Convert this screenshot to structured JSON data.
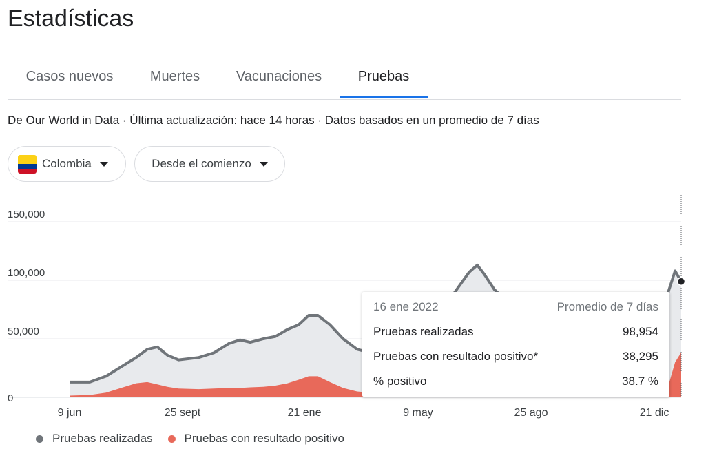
{
  "page_title": "Estadísticas",
  "tabs": [
    {
      "label": "Casos nuevos"
    },
    {
      "label": "Muertes"
    },
    {
      "label": "Vacunaciones"
    },
    {
      "label": "Pruebas"
    }
  ],
  "source": {
    "prefix": "De ",
    "link": "Our World in Data",
    "rest": " · Última actualización: hace 14 horas · Datos basados en un promedio de 7 días"
  },
  "filters": {
    "country": "Colombia",
    "range": "Desde el comienzo"
  },
  "colors": {
    "tests_line": "#70757a",
    "tests_fill": "#e8eaed",
    "positive_fill": "#e8695a",
    "grid": "#e8eaed",
    "tab_active": "#1a73e8"
  },
  "tooltip": {
    "date": "16 ene 2022",
    "note": "Promedio de 7 días",
    "rows": [
      {
        "label": "Pruebas realizadas",
        "value": "98,954"
      },
      {
        "label": "Pruebas con resultado positivo*",
        "value": "38,295"
      },
      {
        "label": "% positivo",
        "value": "38.7 %"
      }
    ]
  },
  "legend": [
    {
      "label": "Pruebas realizadas",
      "color": "#70757a"
    },
    {
      "label": "Pruebas con resultado positivo",
      "color": "#e8695a"
    }
  ],
  "chart_data": {
    "type": "area",
    "title": "",
    "xlabel": "",
    "ylabel": "",
    "ylim": [
      0,
      160000
    ],
    "yticks": [
      0,
      50000,
      100000,
      150000
    ],
    "ytick_labels": [
      "0",
      "50,000",
      "100,000",
      "150,000"
    ],
    "xtick_labels": [
      "9 jun",
      "25 sept",
      "21 ene",
      "9 may",
      "25 ago",
      "21 dic"
    ],
    "xlim": [
      "2020-05-20",
      "2022-01-16"
    ],
    "grid": true,
    "legend_position": "bottom-left",
    "x": [
      "2020-05-20",
      "2020-06-09",
      "2020-06-25",
      "2020-07-10",
      "2020-07-25",
      "2020-08-05",
      "2020-08-15",
      "2020-08-25",
      "2020-09-05",
      "2020-09-25",
      "2020-10-10",
      "2020-10-25",
      "2020-11-05",
      "2020-11-15",
      "2020-11-28",
      "2020-12-10",
      "2020-12-22",
      "2021-01-02",
      "2021-01-12",
      "2021-01-21",
      "2021-02-02",
      "2021-02-15",
      "2021-03-01",
      "2021-03-15",
      "2021-03-30",
      "2021-04-12",
      "2021-04-25",
      "2021-05-09",
      "2021-05-20",
      "2021-06-01",
      "2021-06-10",
      "2021-06-20",
      "2021-06-28",
      "2021-07-05",
      "2021-07-15",
      "2021-07-30",
      "2021-08-25",
      "2021-09-20",
      "2021-10-20",
      "2021-11-20",
      "2021-12-10",
      "2021-12-21",
      "2021-12-28",
      "2022-01-04",
      "2022-01-10",
      "2022-01-16"
    ],
    "series": [
      {
        "name": "Pruebas realizadas",
        "values": [
          13000,
          13000,
          18000,
          26000,
          34000,
          41000,
          43000,
          36000,
          32000,
          34000,
          38000,
          46000,
          49000,
          47000,
          50000,
          52000,
          58000,
          62000,
          70000,
          70000,
          62000,
          50000,
          41000,
          38000,
          42000,
          50000,
          56000,
          62000,
          72000,
          84000,
          95000,
          107000,
          113000,
          105000,
          92000,
          80000,
          70000,
          62000,
          56000,
          54000,
          56000,
          60000,
          72000,
          92000,
          108000,
          98954
        ]
      },
      {
        "name": "Pruebas con resultado positivo",
        "values": [
          1500,
          2000,
          4000,
          8000,
          12000,
          13000,
          11000,
          9000,
          7500,
          7000,
          7500,
          8000,
          8000,
          8500,
          9000,
          10000,
          12000,
          15000,
          18000,
          18000,
          13000,
          8000,
          5000,
          4000,
          5000,
          8000,
          12000,
          14000,
          16000,
          19000,
          22000,
          25000,
          27000,
          22000,
          16000,
          10000,
          5000,
          3000,
          1500,
          1200,
          1000,
          1200,
          2500,
          12000,
          30000,
          38295
        ]
      }
    ]
  }
}
